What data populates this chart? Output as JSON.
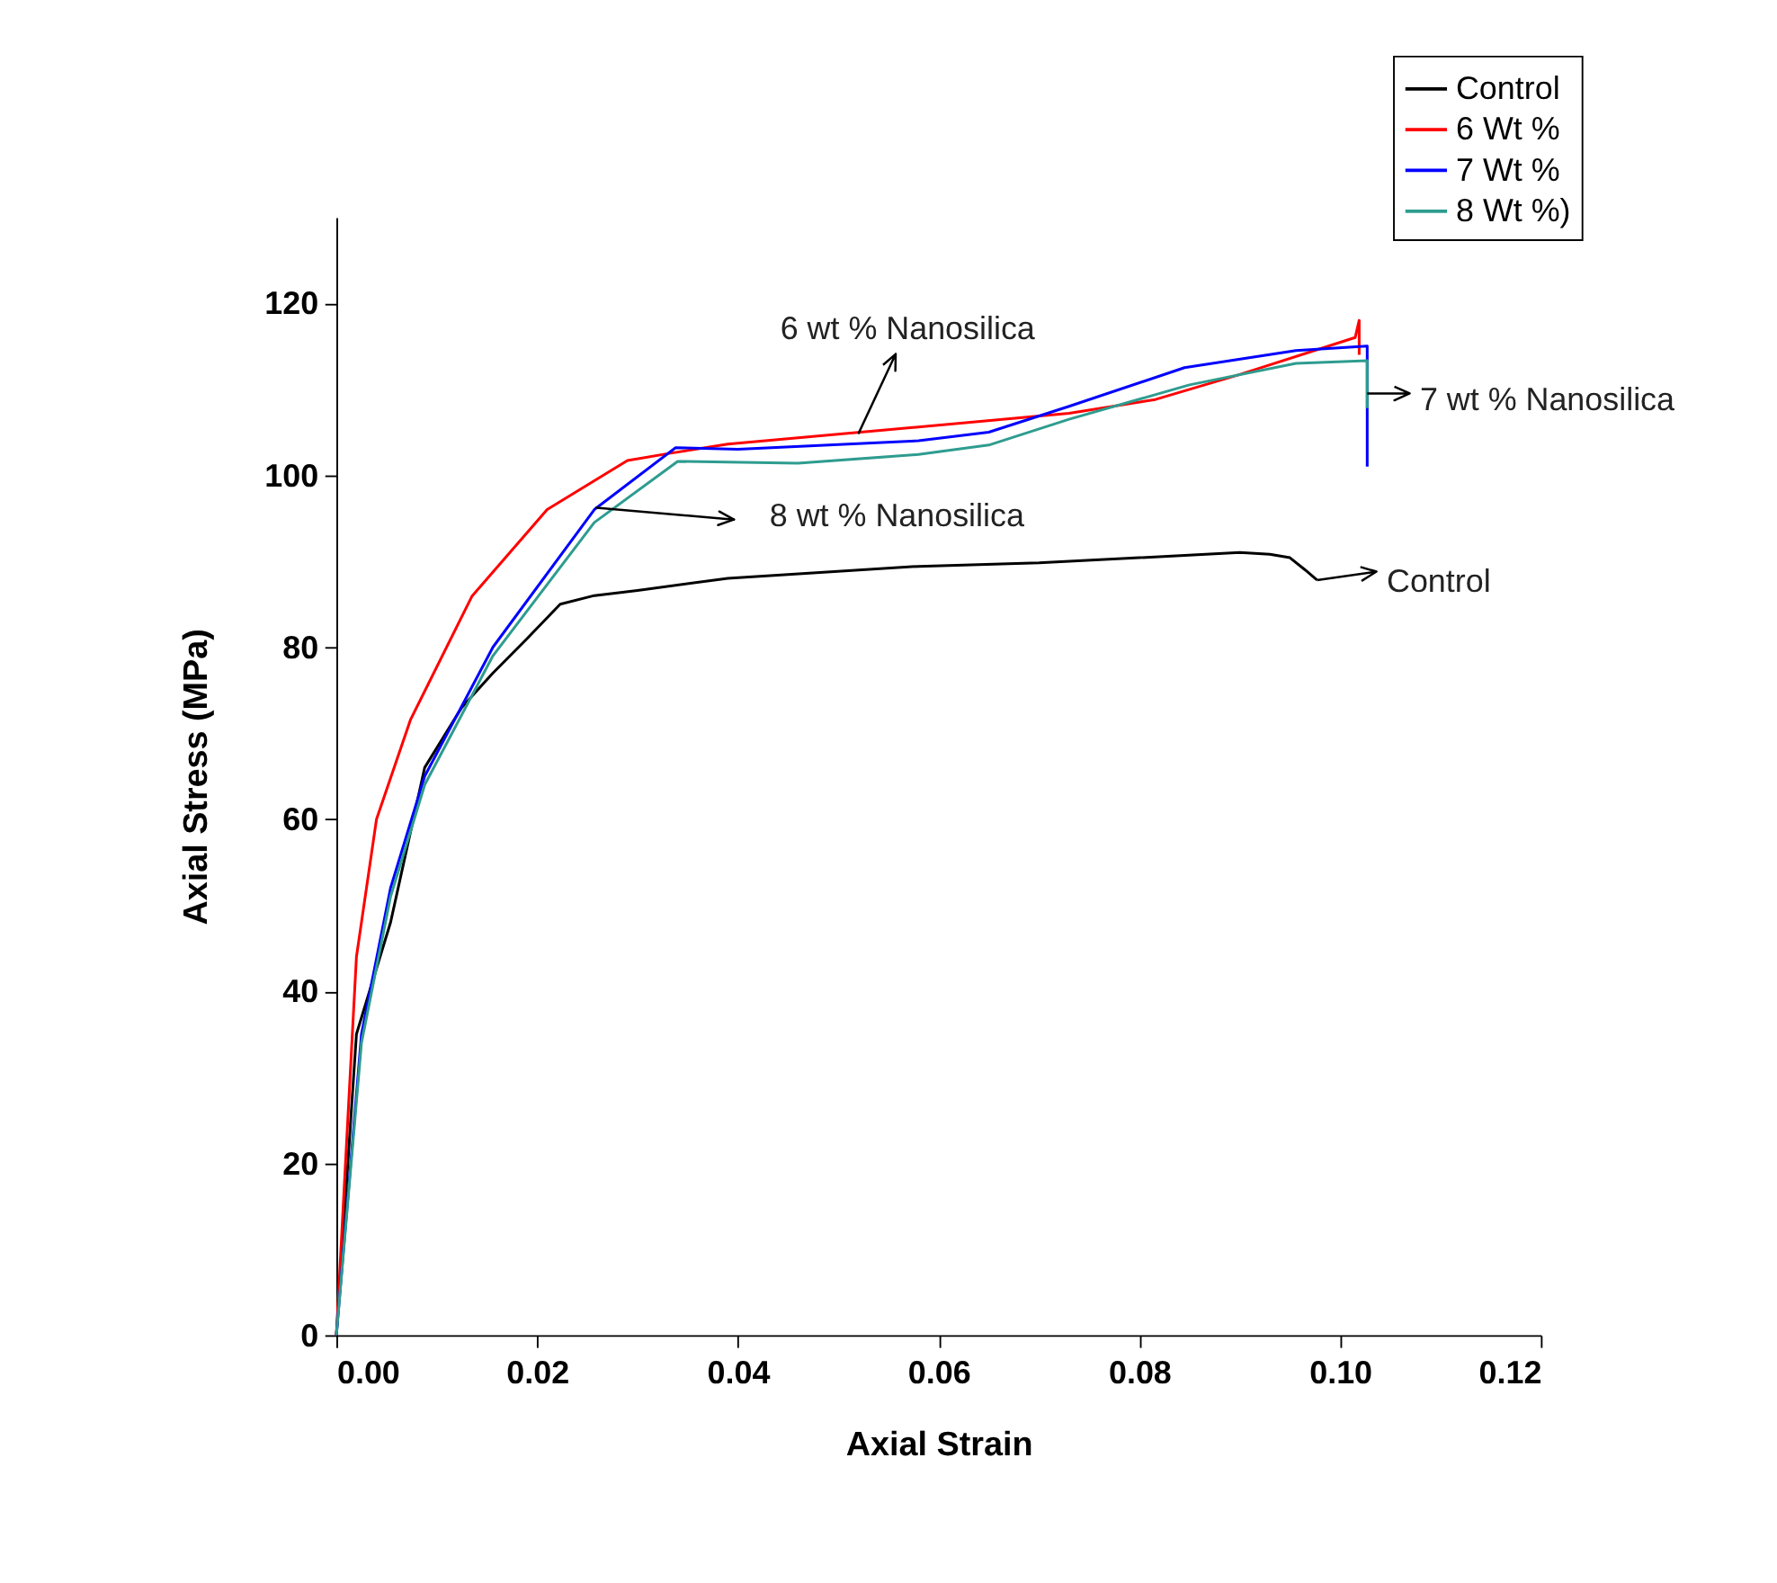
{
  "chart_data": {
    "type": "line",
    "xlabel": "Axial Strain",
    "ylabel": "Axial Stress (MPa)",
    "xlim": [
      0,
      0.12
    ],
    "ylim": [
      0,
      130
    ],
    "xticks": [
      {
        "value": 0,
        "label": "0.00"
      },
      {
        "value": 0.02,
        "label": "0.02"
      },
      {
        "value": 0.04,
        "label": "0.04"
      },
      {
        "value": 0.06,
        "label": "0.06"
      },
      {
        "value": 0.08,
        "label": "0.08"
      },
      {
        "value": 0.1,
        "label": "0.10"
      },
      {
        "value": 0.12,
        "label": "0.12"
      }
    ],
    "yticks": [
      0,
      20,
      40,
      60,
      80,
      100,
      120
    ],
    "legend": "top right",
    "series": [
      {
        "name": "Control",
        "color": "#000000",
        "x": [
          0,
          0.002,
          0.0054,
          0.0088,
          0.0125,
          0.0156,
          0.019,
          0.0223,
          0.0257,
          0.03,
          0.039,
          0.058,
          0.07,
          0.08,
          0.09,
          0.093,
          0.095,
          0.0965,
          0.0977
        ],
        "values": [
          0,
          35,
          48,
          66,
          73,
          77,
          81,
          85,
          86,
          86.6,
          88,
          89.4,
          89.8,
          90.4,
          91,
          90.8,
          90.4,
          89,
          87.8
        ]
      },
      {
        "name": "6 Wt %",
        "color": "#ff0000",
        "x": [
          0,
          0.002,
          0.004,
          0.0074,
          0.0135,
          0.021,
          0.029,
          0.033,
          0.039,
          0.058,
          0.073,
          0.0816,
          0.09,
          0.1015,
          0.1019,
          0.1019
        ],
        "values": [
          0,
          44,
          60,
          71.6,
          85.9,
          96,
          101.7,
          102.5,
          103.6,
          105.6,
          107.2,
          108.8,
          111.7,
          116,
          118,
          114
        ]
      },
      {
        "name": "7 Wt %",
        "color": "#0000ff",
        "x": [
          0,
          0.0025,
          0.0054,
          0.0088,
          0.0156,
          0.0257,
          0.0338,
          0.04,
          0.058,
          0.065,
          0.073,
          0.0845,
          0.0956,
          0.1027,
          0.1027
        ],
        "values": [
          0,
          35,
          52,
          65,
          80,
          96,
          103.2,
          103,
          104,
          105,
          108,
          112.5,
          114.5,
          115,
          101
        ]
      },
      {
        "name": "8 Wt %)",
        "color": "#2e9c8f",
        "x": [
          0,
          0.0025,
          0.0054,
          0.0088,
          0.0156,
          0.0257,
          0.034,
          0.046,
          0.058,
          0.065,
          0.073,
          0.085,
          0.0956,
          0.1027,
          0.1027
        ],
        "values": [
          0,
          34,
          51,
          64,
          79,
          94.5,
          101.6,
          101.4,
          102.4,
          103.5,
          106.5,
          110.5,
          113,
          113.3,
          107.8
        ]
      }
    ],
    "annotations": [
      {
        "text": "6 wt % Nanosilica",
        "x": 0.052,
        "y": 104.8
      },
      "8 wt % Nanosilica",
      {
        "text": "7 wt % Nanosilica",
        "x": 0.1027,
        "y": 109.5
      },
      {
        "text": "Control",
        "x": 0.0977,
        "y": 87.8
      }
    ]
  }
}
